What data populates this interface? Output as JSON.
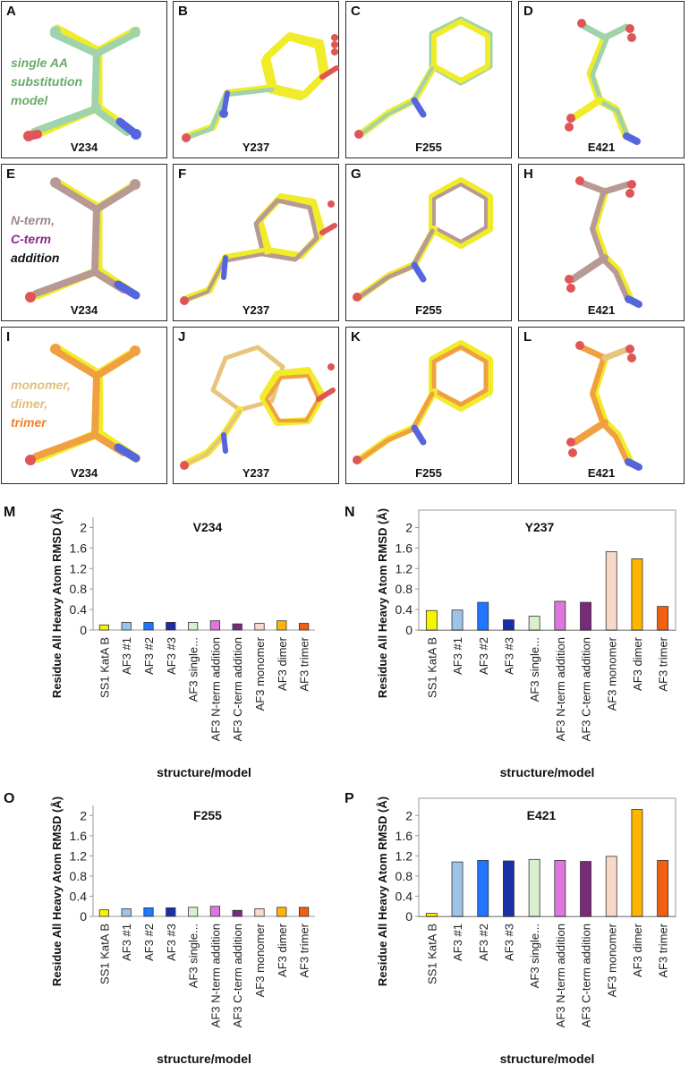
{
  "panels": [
    {
      "id": "panel-a",
      "letter": "A",
      "residue": "V234"
    },
    {
      "id": "panel-b",
      "letter": "B",
      "residue": "Y237"
    },
    {
      "id": "panel-c",
      "letter": "C",
      "residue": "F255"
    },
    {
      "id": "panel-d",
      "letter": "D",
      "residue": "E421"
    },
    {
      "id": "panel-e",
      "letter": "E",
      "residue": "V234"
    },
    {
      "id": "panel-f",
      "letter": "F",
      "residue": "Y237"
    },
    {
      "id": "panel-g",
      "letter": "G",
      "residue": "F255"
    },
    {
      "id": "panel-h",
      "letter": "H",
      "residue": "E421"
    },
    {
      "id": "panel-i",
      "letter": "I",
      "residue": "V234"
    },
    {
      "id": "panel-j",
      "letter": "J",
      "residue": "Y237"
    },
    {
      "id": "panel-k",
      "letter": "K",
      "residue": "F255"
    },
    {
      "id": "panel-l",
      "letter": "L",
      "residue": "E421"
    }
  ],
  "legends": {
    "row1": {
      "line1": "single AA",
      "line2": "substitution",
      "line3": "model"
    },
    "row2": {
      "line1": "N-term,",
      "line2": "C-term",
      "line3": "addition"
    },
    "row3": {
      "line1": "monomer,",
      "line2": "dimer,",
      "line3": "trimer"
    }
  },
  "colors": {
    "ref": "#f0ec2a",
    "single": "#9fd3ac",
    "mauve": "#b89a94",
    "orange": "#f0a040",
    "oxygen": "#e05555",
    "nitrogen": "#5566dd",
    "legendGreen": "#6aaa6a",
    "legendMauve": "#a3868a",
    "legendPurple": "#8a2a8a",
    "legendTan": "#e0c080",
    "legendOrange": "#f08030"
  },
  "chart_data": [
    {
      "id": "M",
      "type": "bar",
      "title": "V234",
      "ylabel": "Residue All Heavy Atom RMSD (Å)",
      "xlabel": "structure/model",
      "ylim": [
        0,
        2.2
      ],
      "yticks": [
        "0",
        "0.4",
        "0.8",
        "1.2",
        "1.6",
        "2"
      ],
      "categories": [
        "SS1 KatA B",
        "AF3 #1",
        "AF3 #2",
        "AF3 #3",
        "AF3 single...",
        "AF3 N-term addition",
        "AF3 C-term addition",
        "AF3 monomer",
        "AF3 dimer",
        "AF3 trimer"
      ],
      "values": [
        0.1,
        0.15,
        0.15,
        0.15,
        0.15,
        0.18,
        0.12,
        0.13,
        0.18,
        0.13
      ],
      "colors": [
        "#f5f500",
        "#9dc3e6",
        "#1f77ff",
        "#1a2ea8",
        "#d8f0d0",
        "#dd77dd",
        "#7a2a7a",
        "#f8d8c8",
        "#ffb400",
        "#f06010"
      ]
    },
    {
      "id": "N",
      "type": "bar",
      "title": "Y237",
      "ylabel": "Residue All Heavy Atom RMSD (Å)",
      "xlabel": "structure/model",
      "ylim": [
        0,
        2.2
      ],
      "yticks": [
        "0",
        "0.4",
        "0.8",
        "1.2",
        "1.6",
        "2"
      ],
      "categories": [
        "SS1 KatA B",
        "AF3 #1",
        "AF3 #2",
        "AF3 #3",
        "AF3 single...",
        "AF3 N-term addition",
        "AF3 C-term addition",
        "AF3 monomer",
        "AF3 dimer",
        "AF3 trimer"
      ],
      "values": [
        0.38,
        0.39,
        0.54,
        0.2,
        0.27,
        0.56,
        0.54,
        1.53,
        1.39,
        0.46
      ],
      "colors": [
        "#f5f500",
        "#9dc3e6",
        "#1f77ff",
        "#1a2ea8",
        "#d8f0d0",
        "#dd77dd",
        "#7a2a7a",
        "#f8d8c8",
        "#ffb400",
        "#f06010"
      ]
    },
    {
      "id": "O",
      "type": "bar",
      "title": "F255",
      "ylabel": "Residue All Heavy Atom RMSD (Å)",
      "xlabel": "structure/model",
      "ylim": [
        0,
        2.2
      ],
      "yticks": [
        "0",
        "0.4",
        "0.8",
        "1.2",
        "1.6",
        "2"
      ],
      "categories": [
        "SS1 KatA B",
        "AF3 #1",
        "AF3 #2",
        "AF3 #3",
        "AF3 single...",
        "AF3 N-term addition",
        "AF3 C-term addition",
        "AF3 monomer",
        "AF3 dimer",
        "AF3 trimer"
      ],
      "values": [
        0.13,
        0.15,
        0.17,
        0.17,
        0.18,
        0.2,
        0.12,
        0.15,
        0.18,
        0.18
      ],
      "colors": [
        "#f5f500",
        "#9dc3e6",
        "#1f77ff",
        "#1a2ea8",
        "#d8f0d0",
        "#dd77dd",
        "#7a2a7a",
        "#f8d8c8",
        "#ffb400",
        "#f06010"
      ]
    },
    {
      "id": "P",
      "type": "bar",
      "title": "E421",
      "ylabel": "Residue All Heavy Atom RMSD (Å)",
      "xlabel": "structure/model",
      "ylim": [
        0,
        2.2
      ],
      "yticks": [
        "0",
        "0.4",
        "0.8",
        "1.2",
        "1.6",
        "2"
      ],
      "categories": [
        "SS1 KatA B",
        "AF3 #1",
        "AF3 #2",
        "AF3 #3",
        "AF3 single...",
        "AF3 N-term addition",
        "AF3 C-term addition",
        "AF3 monomer",
        "AF3 dimer",
        "AF3 trimer"
      ],
      "values": [
        0.06,
        1.08,
        1.11,
        1.1,
        1.13,
        1.11,
        1.09,
        1.19,
        2.12,
        1.11
      ],
      "colors": [
        "#f5f500",
        "#9dc3e6",
        "#1f77ff",
        "#1a2ea8",
        "#d8f0d0",
        "#dd77dd",
        "#7a2a7a",
        "#f8d8c8",
        "#ffb400",
        "#f06010"
      ]
    }
  ]
}
